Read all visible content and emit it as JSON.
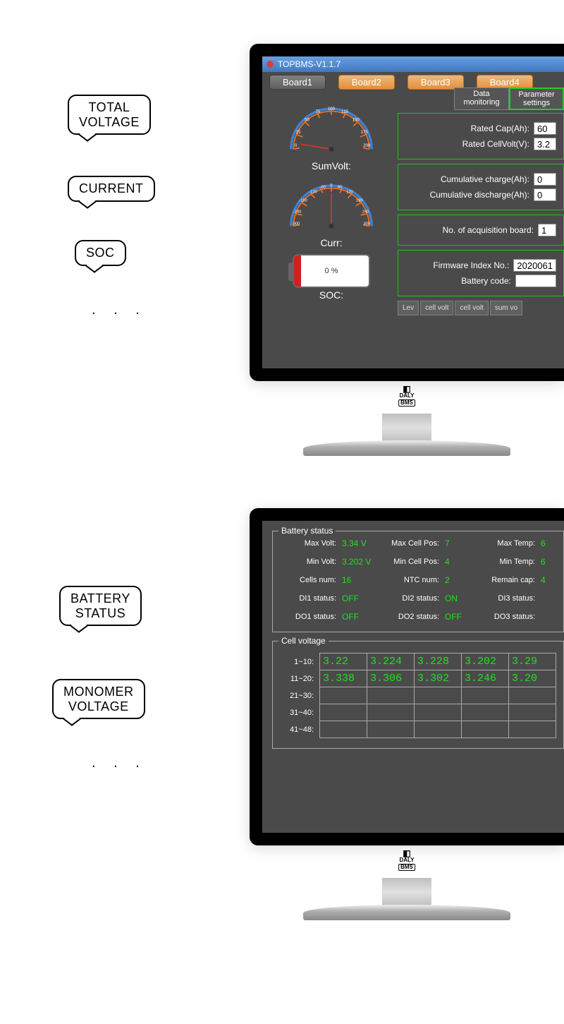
{
  "colors": {
    "screen_bg": "#4a4a4a",
    "green_text": "#20e020",
    "green_border": "#20c020",
    "tab_active_bg": "#606060",
    "tab_bg_top": "#f0b878",
    "tab_bg_bottom": "#e09040",
    "titlebar_top": "#6aa0e0",
    "titlebar_bottom": "#4078c0",
    "gauge_outer": "#4080d0",
    "gauge_ticks": "#f07020",
    "gauge_needle": "#e03020",
    "battery_fill": "#d02020"
  },
  "bubbles": {
    "total_voltage": "TOTAL\nVOLTAGE",
    "current": "CURRENT",
    "soc": "SOC",
    "battery_status": "BATTERY\nSTATUS",
    "monomer_voltage": "MONOMER\nVOLTAGE",
    "dots": ". . ."
  },
  "monitor_brand": {
    "line1": "DALY",
    "line2": "BMS"
  },
  "screen1": {
    "title": "TOPBMS-V1.1.7",
    "boards": [
      "Board1",
      "Board2",
      "Board3",
      "Board4"
    ],
    "active_board_index": 0,
    "mode_tabs": {
      "data_monitoring": "Data\nmonitoring",
      "parameter_settings": "Parameter\nsettings"
    },
    "selected_mode": "parameter_settings",
    "gauges": {
      "sumvolt": {
        "label": "SumVolt:",
        "ticks": [
          "0",
          "25",
          "50",
          "75",
          "100",
          "125",
          "150",
          "175",
          "200"
        ]
      },
      "curr": {
        "label": "Curr:",
        "ticks": [
          "-300",
          "-240",
          "-180",
          "-120",
          "-60",
          "0",
          "60",
          "120",
          "180",
          "240",
          "300"
        ]
      },
      "soc": {
        "label": "SOC:",
        "percent": "0 %"
      }
    },
    "params": {
      "rated_cap": {
        "label": "Rated Cap(Ah):",
        "value": "60"
      },
      "rated_cellvolt": {
        "label": "Rated CellVolt(V):",
        "value": "3.2"
      },
      "cum_charge": {
        "label": "Cumulative charge(Ah):",
        "value": "0"
      },
      "cum_discharge": {
        "label": "Cumulative discharge(Ah):",
        "value": "0"
      },
      "acq_board": {
        "label": "No. of acquisition board:",
        "value": "1"
      },
      "firmware": {
        "label": "Firmware Index No.:",
        "value": "2020061"
      },
      "battery_code": {
        "label": "Battery code:",
        "value": ""
      }
    },
    "mini_headers": [
      "Lev",
      "cell volt",
      "cell volt",
      "sum vo"
    ]
  },
  "screen2": {
    "battery_status": {
      "legend": "Battery status",
      "rows": [
        {
          "l1": "Max Volt:",
          "v1": "3.34 V",
          "l2": "Max Cell Pos:",
          "v2": "7",
          "l3": "Max Temp:",
          "v3": "6"
        },
        {
          "l1": "Min Volt:",
          "v1": "3.202 V",
          "l2": "Min Cell Pos:",
          "v2": "4",
          "l3": "Min Temp:",
          "v3": "6"
        },
        {
          "l1": "Cells num:",
          "v1": "16",
          "l2": "NTC num:",
          "v2": "2",
          "l3": "Remain cap:",
          "v3": "4"
        },
        {
          "l1": "DI1 status:",
          "v1": "OFF",
          "l2": "DI2 status:",
          "v2": "ON",
          "l3": "DI3 status:",
          "v3": ""
        },
        {
          "l1": "DO1 status:",
          "v1": "OFF",
          "l2": "DO2 status:",
          "v2": "OFF",
          "l3": "DO3 status:",
          "v3": ""
        }
      ]
    },
    "cell_voltage": {
      "legend": "Cell voltage",
      "row_labels": [
        "1~10:",
        "11~20:",
        "21~30:",
        "31~40:",
        "41~48:"
      ],
      "data": [
        [
          "3.22",
          "3.224",
          "3.228",
          "3.202",
          "3.29"
        ],
        [
          "3.338",
          "3.306",
          "3.302",
          "3.246",
          "3.20"
        ],
        [
          "",
          "",
          "",
          "",
          ""
        ],
        [
          "",
          "",
          "",
          "",
          ""
        ],
        [
          "",
          "",
          "",
          "",
          ""
        ]
      ]
    }
  }
}
